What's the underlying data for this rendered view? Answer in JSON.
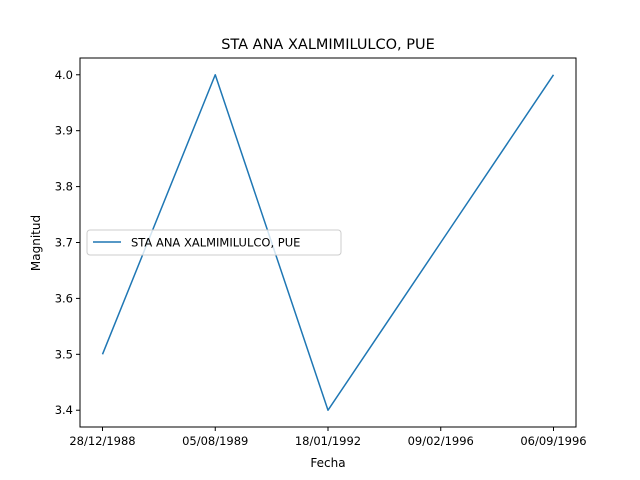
{
  "chart_data": {
    "type": "line",
    "title": "STA ANA XALMIMILULCO, PUE",
    "xlabel": "Fecha",
    "ylabel": "Magnitud",
    "categories": [
      "28/12/1988",
      "05/08/1989",
      "18/01/1992",
      "09/02/1996",
      "06/09/1996"
    ],
    "series": [
      {
        "name": "STA ANA XALMIMILULCO, PUE",
        "x": [
          "28/12/1988",
          "05/08/1989",
          "18/01/1992",
          "09/02/1996",
          "06/09/1996"
        ],
        "values": [
          3.5,
          4.0,
          3.4,
          3.7,
          4.0
        ],
        "color": "#1f77b4"
      }
    ],
    "ylim": [
      3.37,
      4.03
    ],
    "yticks": [
      3.4,
      3.5,
      3.6,
      3.7,
      3.8,
      3.9,
      4.0
    ],
    "ytick_labels": [
      "3.4",
      "3.5",
      "3.6",
      "3.7",
      "3.8",
      "3.9",
      "4.0"
    ],
    "grid": false,
    "legend_position": "center-left"
  }
}
